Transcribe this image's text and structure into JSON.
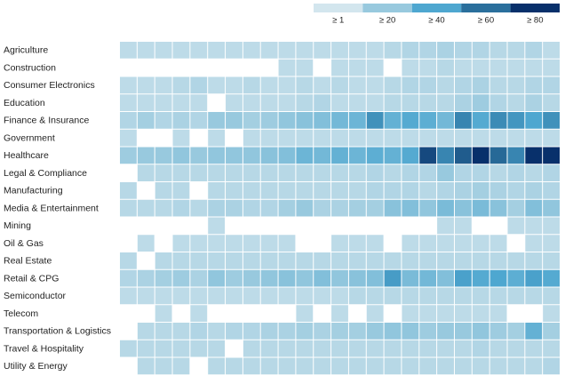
{
  "chart_data": {
    "type": "heatmap",
    "legend": {
      "thresholds": [
        {
          "value": 1,
          "label": "≥ 1",
          "color": "#d3e6ee"
        },
        {
          "value": 20,
          "label": "≥ 20",
          "color": "#98c9de"
        },
        {
          "value": 40,
          "label": "≥ 40",
          "color": "#4ea7d0"
        },
        {
          "value": 60,
          "label": "≥ 60",
          "color": "#2a6f9c"
        },
        {
          "value": 80,
          "label": "≥ 80",
          "color": "#08306b"
        }
      ]
    },
    "series": [
      {
        "name": "Agriculture",
        "values": [
          8,
          8,
          8,
          8,
          8,
          8,
          8,
          8,
          8,
          8,
          8,
          8,
          8,
          8,
          8,
          10,
          12,
          12,
          14,
          12,
          12,
          10,
          10,
          12,
          8
        ]
      },
      {
        "name": "Construction",
        "values": [
          0,
          0,
          0,
          0,
          0,
          0,
          0,
          0,
          0,
          8,
          8,
          0,
          8,
          8,
          8,
          0,
          8,
          8,
          10,
          8,
          8,
          8,
          8,
          8,
          8
        ]
      },
      {
        "name": "Consumer Electronics",
        "values": [
          8,
          8,
          8,
          10,
          12,
          8,
          8,
          10,
          8,
          8,
          10,
          8,
          10,
          8,
          8,
          10,
          12,
          12,
          10,
          12,
          14,
          10,
          10,
          12,
          12
        ]
      },
      {
        "name": "Education",
        "values": [
          8,
          8,
          8,
          8,
          8,
          0,
          8,
          8,
          8,
          8,
          10,
          12,
          8,
          8,
          8,
          10,
          10,
          10,
          10,
          14,
          18,
          12,
          10,
          14,
          10
        ]
      },
      {
        "name": "Finance & Insurance",
        "values": [
          12,
          16,
          12,
          14,
          12,
          20,
          20,
          16,
          18,
          22,
          24,
          26,
          30,
          32,
          48,
          34,
          38,
          36,
          30,
          52,
          38,
          50,
          46,
          40,
          48
        ]
      },
      {
        "name": "Government",
        "values": [
          8,
          0,
          0,
          8,
          0,
          8,
          0,
          8,
          8,
          8,
          8,
          8,
          8,
          8,
          8,
          8,
          8,
          8,
          8,
          8,
          8,
          8,
          8,
          8,
          8
        ]
      },
      {
        "name": "Healthcare",
        "values": [
          18,
          20,
          20,
          22,
          20,
          22,
          22,
          22,
          24,
          26,
          32,
          30,
          34,
          32,
          36,
          34,
          38,
          72,
          52,
          66,
          95,
          62,
          52,
          90,
          85
        ]
      },
      {
        "name": "Legal & Compliance",
        "values": [
          0,
          10,
          10,
          10,
          10,
          10,
          10,
          10,
          10,
          10,
          10,
          10,
          10,
          10,
          12,
          10,
          12,
          12,
          20,
          12,
          12,
          10,
          12,
          10,
          12
        ]
      },
      {
        "name": "Manufacturing",
        "values": [
          10,
          0,
          10,
          10,
          0,
          10,
          10,
          10,
          10,
          10,
          10,
          10,
          10,
          10,
          12,
          12,
          12,
          10,
          12,
          14,
          16,
          14,
          12,
          14,
          12
        ]
      },
      {
        "name": "Media & Entertainment",
        "values": [
          10,
          10,
          10,
          12,
          10,
          14,
          14,
          12,
          12,
          16,
          20,
          14,
          14,
          16,
          16,
          24,
          26,
          22,
          28,
          24,
          28,
          24,
          16,
          26,
          22
        ]
      },
      {
        "name": "Mining",
        "values": [
          0,
          0,
          0,
          0,
          0,
          8,
          0,
          0,
          0,
          0,
          0,
          0,
          0,
          0,
          0,
          0,
          0,
          0,
          8,
          8,
          0,
          0,
          8,
          8,
          8
        ]
      },
      {
        "name": "Oil & Gas",
        "values": [
          0,
          8,
          0,
          8,
          8,
          8,
          8,
          8,
          8,
          8,
          0,
          0,
          8,
          8,
          8,
          0,
          8,
          8,
          8,
          8,
          8,
          8,
          0,
          8,
          8
        ]
      },
      {
        "name": "Real Estate",
        "values": [
          10,
          0,
          10,
          10,
          10,
          10,
          10,
          10,
          10,
          10,
          10,
          10,
          10,
          10,
          10,
          10,
          10,
          10,
          10,
          10,
          10,
          10,
          10,
          10,
          10
        ]
      },
      {
        "name": "Retail & CPG",
        "values": [
          12,
          14,
          16,
          18,
          14,
          22,
          18,
          20,
          22,
          24,
          22,
          26,
          22,
          24,
          26,
          44,
          28,
          30,
          26,
          42,
          38,
          40,
          36,
          42,
          38
        ]
      },
      {
        "name": "Semiconductor",
        "values": [
          8,
          8,
          8,
          8,
          8,
          8,
          8,
          8,
          8,
          8,
          8,
          8,
          8,
          10,
          10,
          10,
          10,
          10,
          10,
          10,
          10,
          10,
          10,
          10,
          10
        ]
      },
      {
        "name": "Telecom",
        "values": [
          0,
          0,
          8,
          0,
          8,
          0,
          0,
          0,
          0,
          0,
          8,
          0,
          8,
          0,
          8,
          0,
          8,
          8,
          8,
          8,
          8,
          8,
          0,
          0,
          8
        ]
      },
      {
        "name": "Transportation & Logistics",
        "values": [
          0,
          10,
          10,
          10,
          12,
          10,
          12,
          12,
          14,
          14,
          16,
          14,
          16,
          16,
          20,
          22,
          22,
          18,
          20,
          20,
          22,
          18,
          16,
          34,
          16
        ]
      },
      {
        "name": "Travel & Hospitality",
        "values": [
          10,
          10,
          10,
          10,
          10,
          10,
          0,
          10,
          10,
          10,
          10,
          10,
          10,
          10,
          10,
          10,
          10,
          10,
          10,
          10,
          12,
          10,
          10,
          10,
          10
        ]
      },
      {
        "name": "Utility & Energy",
        "values": [
          0,
          10,
          10,
          10,
          0,
          10,
          10,
          10,
          10,
          10,
          10,
          10,
          10,
          10,
          10,
          10,
          10,
          10,
          10,
          10,
          10,
          10,
          10,
          10,
          12
        ]
      }
    ]
  }
}
